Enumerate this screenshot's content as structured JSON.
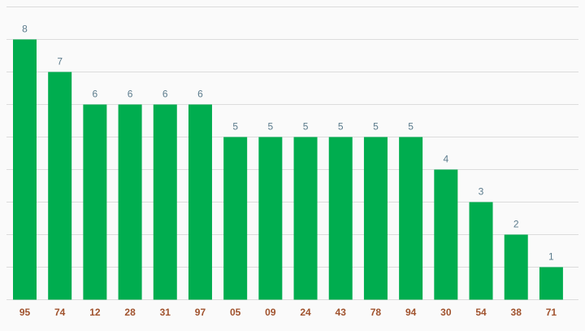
{
  "chart_data": {
    "type": "bar",
    "categories": [
      "95",
      "74",
      "12",
      "28",
      "31",
      "97",
      "05",
      "09",
      "24",
      "43",
      "78",
      "94",
      "30",
      "54",
      "38",
      "71"
    ],
    "values": [
      8,
      7,
      6,
      6,
      6,
      6,
      5,
      5,
      5,
      5,
      5,
      5,
      4,
      3,
      2,
      1
    ],
    "color": "#00ad4f",
    "ylim": [
      0,
      9
    ],
    "yticks": [
      0,
      1,
      2,
      3,
      4,
      5,
      6,
      7,
      8,
      9
    ],
    "grid": true
  }
}
